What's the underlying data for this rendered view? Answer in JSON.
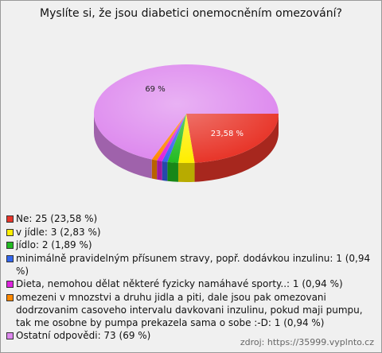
{
  "chart_data": {
    "type": "pie3d",
    "title": "Myslíte si, že jsou diabetici onemocněním omezování?",
    "categories": [
      "Ne: 25 (23,58 %)",
      "v jídle: 3 (2,83 %)",
      "jídlo: 2 (1,89 %)",
      "minimálně pravidelným přísunem stravy, popř. dodávkou inzulinu: 1 (0,94 %)",
      "Dieta, nemohou dělat některé fyzicky namáhavé sporty..: 1 (0,94 %)",
      "omezeni v mnozstvi a druhu jidla a piti, dale jsou pak omezovani dodrzovanim casoveho intervalu davkovani inzulinu, pokud maji pumpu, tak me osobne by pumpa prekazela sama o sobe :-D: 1 (0,94 %)",
      "Ostatní odpovědi: 73 (69 %)"
    ],
    "values": [
      23.58,
      2.83,
      1.89,
      0.94,
      0.94,
      0.94,
      69
    ],
    "value_labels": [
      "23,58 %",
      null,
      null,
      null,
      null,
      null,
      "69 %"
    ],
    "colors": [
      "#e8362a",
      "#ffee00",
      "#22bb22",
      "#3366ee",
      "#dd22dd",
      "#ff8800",
      "#dd88ee"
    ],
    "source": "zdroj: https://35999.vyplnto.cz"
  }
}
